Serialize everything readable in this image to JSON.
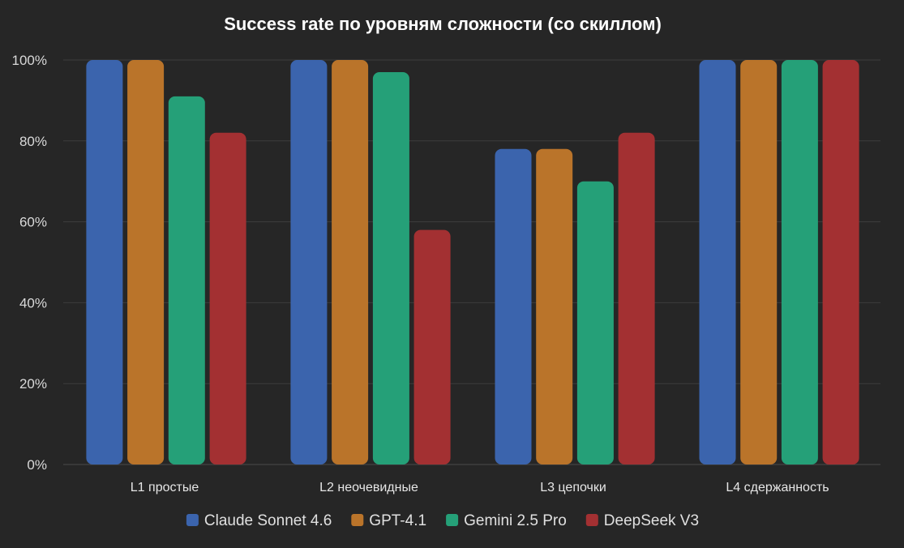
{
  "chart_data": {
    "type": "bar",
    "title": "Success rate по уровням сложности (со скиллом)",
    "xlabel": "",
    "ylabel": "",
    "ylim": [
      0,
      100
    ],
    "yticks": [
      0,
      20,
      40,
      60,
      80,
      100
    ],
    "ytick_suffix": "%",
    "grid": true,
    "legend_position": "bottom-center",
    "categories": [
      "L1 простые",
      "L2 неочевидные",
      "L3 цепочки",
      "L4 сдержанность"
    ],
    "series": [
      {
        "name": "Claude Sonnet 4.6",
        "color": "#3b64ad",
        "values": [
          100,
          100,
          78,
          100
        ]
      },
      {
        "name": "GPT-4.1",
        "color": "#ba742a",
        "values": [
          100,
          100,
          78,
          100
        ]
      },
      {
        "name": "Gemini 2.5 Pro",
        "color": "#25a078",
        "values": [
          91,
          97,
          70,
          100
        ]
      },
      {
        "name": "DeepSeek V3",
        "color": "#a33032",
        "values": [
          82,
          58,
          82,
          100
        ]
      }
    ]
  }
}
